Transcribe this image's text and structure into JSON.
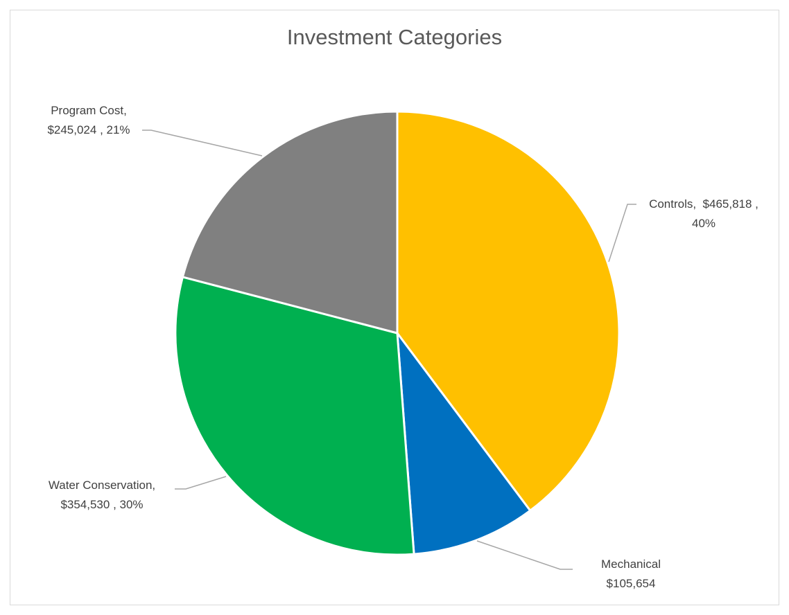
{
  "chart_data": {
    "type": "pie",
    "title": "Investment Categories",
    "slices": [
      {
        "name": "Controls",
        "value": 465818,
        "percent": 40,
        "color": "#FFC000",
        "label_lines": [
          "Controls,  $465,818 ,",
          "40%"
        ]
      },
      {
        "name": "Mechanical",
        "value": 105654,
        "percent": 9,
        "color": "#0070C0",
        "label_lines": [
          "Mechanical",
          "$105,654"
        ]
      },
      {
        "name": "Water Conservation",
        "value": 354530,
        "percent": 30,
        "color": "#00B050",
        "label_lines": [
          "Water Conservation,",
          "$354,530 , 30%"
        ]
      },
      {
        "name": "Program Cost",
        "value": 245024,
        "percent": 21,
        "color": "#808080",
        "label_lines": [
          "Program Cost,",
          "$245,024 , 21%"
        ]
      }
    ],
    "start_angle": "12 o'clock",
    "direction": "clockwise",
    "legend": "none",
    "leader_lines": true
  }
}
